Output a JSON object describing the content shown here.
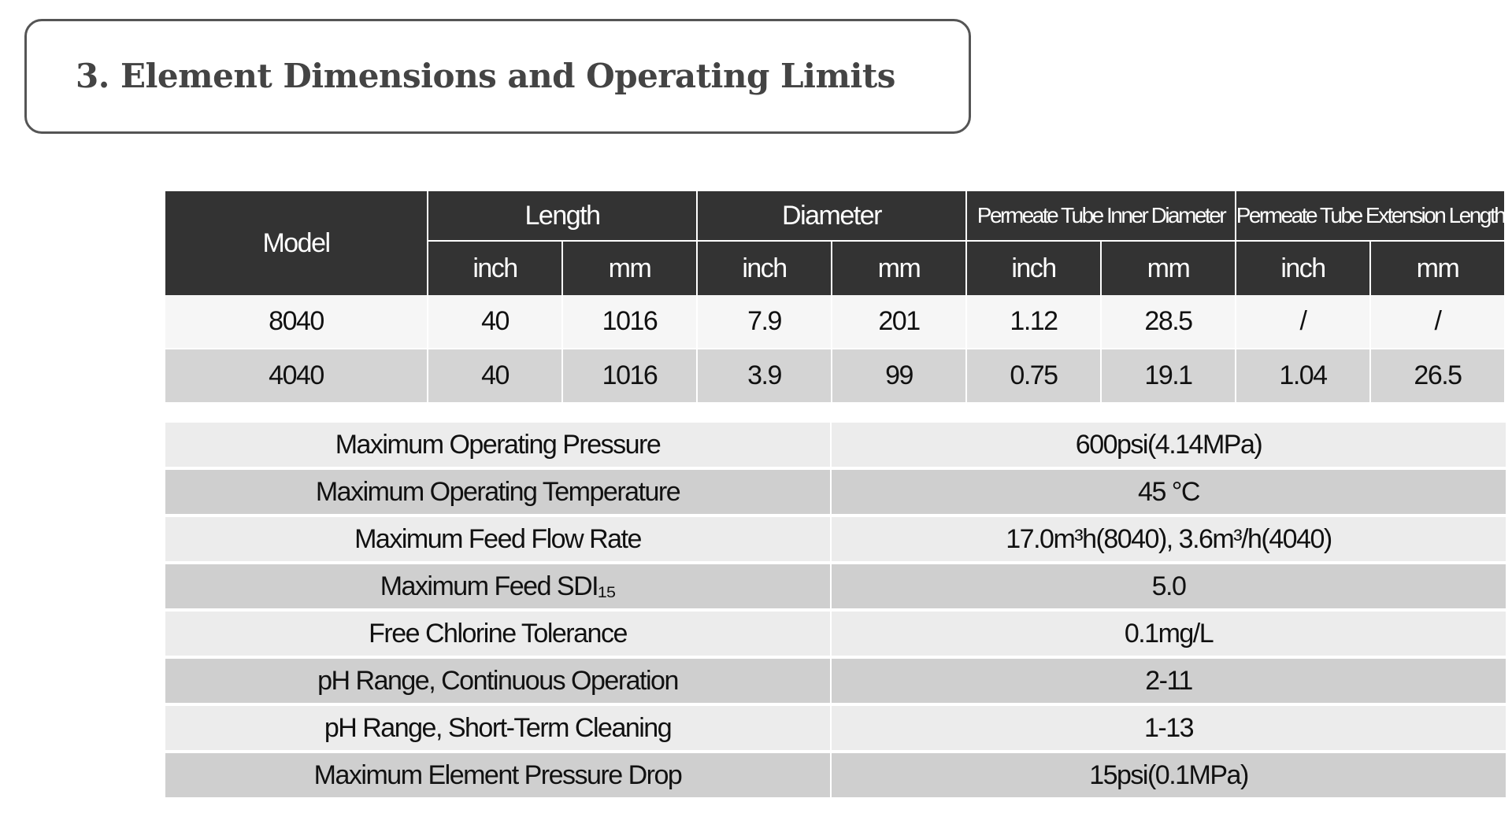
{
  "header": {
    "title": "3. Element Dimensions and Operating Limits"
  },
  "table": {
    "model_header": "Model",
    "group_headers": [
      "Length",
      "Diameter",
      "Permeate Tube Inner Diameter",
      "Permeate Tube Extension Length"
    ],
    "sub_headers": [
      "inch",
      "mm",
      "inch",
      "mm",
      "inch",
      "mm",
      "inch",
      "mm"
    ],
    "rows": [
      [
        "8040",
        "40",
        "1016",
        "7.9",
        "201",
        "1.12",
        "28.5",
        "/",
        "/"
      ],
      [
        "4040",
        "40",
        "1016",
        "3.9",
        "99",
        "0.75",
        "19.1",
        "1.04",
        "26.5"
      ]
    ]
  },
  "limits": {
    "rows": [
      [
        "Maximum Operating Pressure",
        "600psi(4.14MPa)"
      ],
      [
        "Maximum Operating Temperature",
        "45 °C"
      ],
      [
        "Maximum Feed Flow Rate",
        "17.0m³h(8040), 3.6m³/h(4040)"
      ],
      [
        "Maximum Feed SDI₁₅",
        "5.0"
      ],
      [
        "Free Chlorine Tolerance",
        "0.1mg/L"
      ],
      [
        "pH Range, Continuous Operation",
        "2-11"
      ],
      [
        "pH Range, Short-Term Cleaning",
        "1-13"
      ],
      [
        "Maximum Element Pressure Drop",
        "15psi(0.1MPa)"
      ]
    ]
  }
}
